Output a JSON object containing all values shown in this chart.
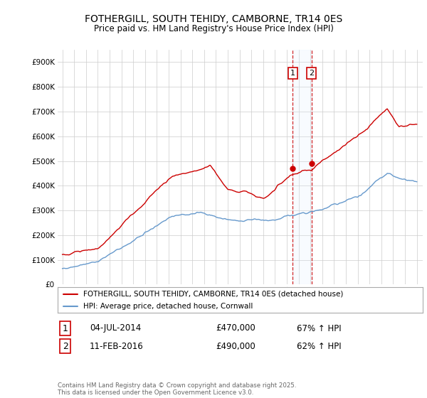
{
  "title": "FOTHERGILL, SOUTH TEHIDY, CAMBORNE, TR14 0ES",
  "subtitle": "Price paid vs. HM Land Registry's House Price Index (HPI)",
  "legend_line1": "FOTHERGILL, SOUTH TEHIDY, CAMBORNE, TR14 0ES (detached house)",
  "legend_line2": "HPI: Average price, detached house, Cornwall",
  "sale1_date": "04-JUL-2014",
  "sale1_price": "£470,000",
  "sale1_hpi": "67% ↑ HPI",
  "sale2_date": "11-FEB-2016",
  "sale2_price": "£490,000",
  "sale2_hpi": "62% ↑ HPI",
  "footer": "Contains HM Land Registry data © Crown copyright and database right 2025.\nThis data is licensed under the Open Government Licence v3.0.",
  "red_color": "#cc0000",
  "blue_color": "#6699cc",
  "vline_color": "#cc0000",
  "shade_color": "#ddeeff",
  "background_color": "#ffffff",
  "grid_color": "#cccccc",
  "ylim": [
    0,
    950000
  ],
  "yticks": [
    0,
    100000,
    200000,
    300000,
    400000,
    500000,
    600000,
    700000,
    800000,
    900000
  ],
  "year_start": 1995,
  "year_end": 2025,
  "sale1_year": 2014.5,
  "sale2_year": 2016.08,
  "sale1_price_val": 470000,
  "sale2_price_val": 490000
}
